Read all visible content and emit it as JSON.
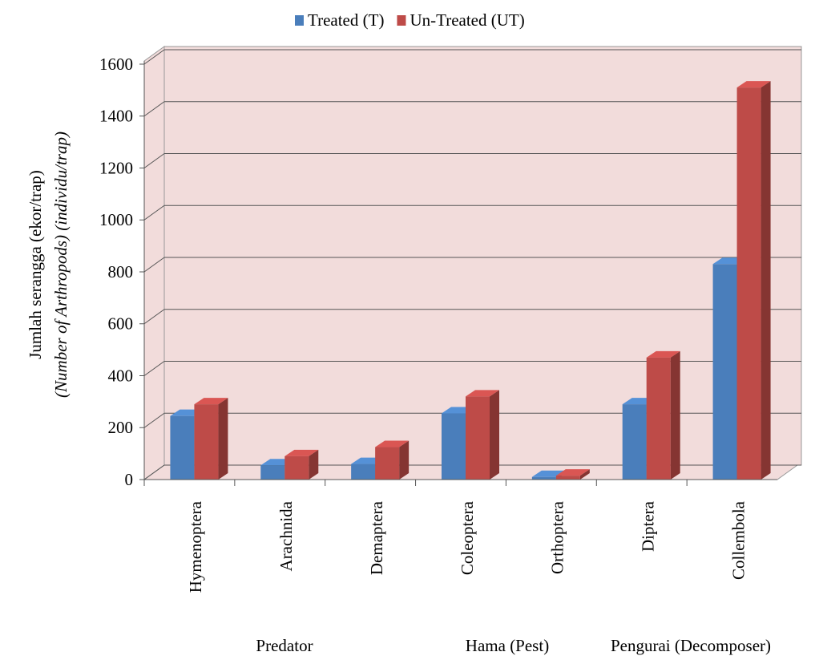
{
  "chart_data": {
    "type": "bar3d",
    "y_label_lines": [
      "Jumlah serangga (ekor/trap)",
      "(Number of Arthropods) (individu/trap)"
    ],
    "categories": [
      "Hymenoptera",
      "Arachnida",
      "Demaptera",
      "Coleoptera",
      "Orthoptera",
      "Diptera",
      "Collembola"
    ],
    "series": [
      {
        "name": "Treated (T)",
        "color": "#4a7ebb",
        "values": [
          245,
          55,
          60,
          255,
          10,
          290,
          830
        ]
      },
      {
        "name": "Un-Treated (UT)",
        "color": "#be4b48",
        "values": [
          290,
          90,
          125,
          320,
          15,
          470,
          1510
        ]
      }
    ],
    "group_labels": [
      "Predator",
      "Hama (Pest)",
      "Pengurai (Decomposer)"
    ],
    "ylim": [
      0,
      1600
    ],
    "yticks": [
      0,
      200,
      400,
      600,
      800,
      1000,
      1200,
      1400,
      1600
    ],
    "grid": true,
    "legend": "top"
  }
}
